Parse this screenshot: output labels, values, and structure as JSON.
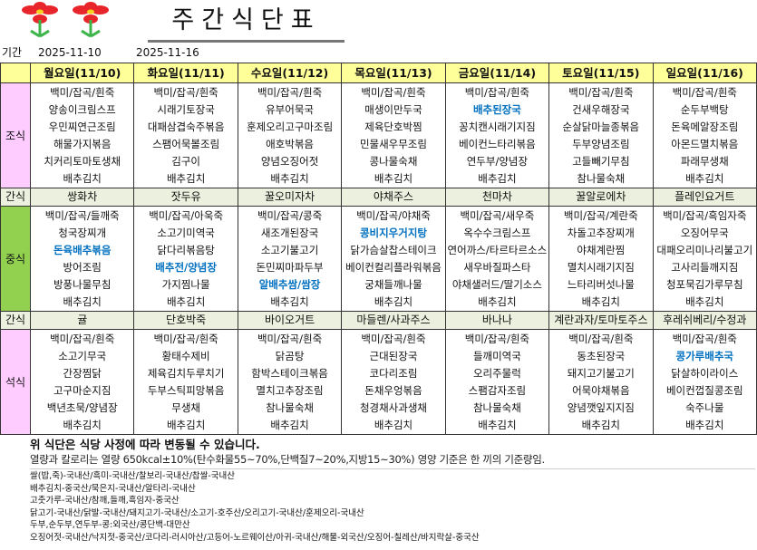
{
  "title": "주간식단표",
  "period": {
    "label": "기간",
    "start": "2025-11-10",
    "end": "2025-11-16"
  },
  "labels": {
    "breakfast": "조식",
    "snack": "간식",
    "lunch": "중식",
    "dinner": "석식"
  },
  "colors": {
    "header": "#FFFF99",
    "breakfast_label": "#FFCCFF",
    "lunch_label": "#92D050",
    "snack_row": "#EBF1DE",
    "highlight_text": "#0070C0"
  },
  "days": [
    {
      "name": "월요일(11/10)",
      "breakfast": [
        {
          "text": "백미/잡곡/흰죽"
        },
        {
          "text": "양송이크림스프"
        },
        {
          "text": "우민찌연근조림"
        },
        {
          "text": "해물가지볶음"
        },
        {
          "text": "치커리토마토생채"
        },
        {
          "text": "배추김치"
        }
      ],
      "snack_am": "쌍화차",
      "lunch": [
        {
          "text": "백미/잡곡/들깨죽"
        },
        {
          "text": "청국장찌개"
        },
        {
          "text": "돈육배추볶음",
          "highlight": true
        },
        {
          "text": "방어조림"
        },
        {
          "text": "방풍나물무침"
        },
        {
          "text": "배추김치"
        }
      ],
      "snack_pm": "귤",
      "dinner": [
        {
          "text": "백미/잡곡/흰죽"
        },
        {
          "text": "소고기무국"
        },
        {
          "text": "간장찜닭"
        },
        {
          "text": "고구마순지짐"
        },
        {
          "text": "백년초묵/양념장"
        },
        {
          "text": "배추김치"
        }
      ]
    },
    {
      "name": "화요일(11/11)",
      "breakfast": [
        {
          "text": "백미/잡곡/흰죽"
        },
        {
          "text": "시래기토장국"
        },
        {
          "text": "대패삼겹숙주볶음"
        },
        {
          "text": "스팸어묵볼조림"
        },
        {
          "text": "김구이"
        },
        {
          "text": "배추김치"
        }
      ],
      "snack_am": "잣두유",
      "lunch": [
        {
          "text": "백미/잡곡/아욱죽"
        },
        {
          "text": "소고기미역국"
        },
        {
          "text": "닭다리볶음탕"
        },
        {
          "text": "배추전/양념장",
          "highlight": true
        },
        {
          "text": "가지찜나물"
        },
        {
          "text": "배추김치"
        }
      ],
      "snack_pm": "단호박죽",
      "dinner": [
        {
          "text": "백미/잡곡/흰죽"
        },
        {
          "text": "황태수제비"
        },
        {
          "text": "제육김치두루치기"
        },
        {
          "text": "두부스틱피망볶음"
        },
        {
          "text": "무생채"
        },
        {
          "text": "배추김치"
        }
      ]
    },
    {
      "name": "수요일(11/12)",
      "breakfast": [
        {
          "text": "백미/잡곡/흰죽"
        },
        {
          "text": "유부어묵국"
        },
        {
          "text": "훈제오리고구마조림"
        },
        {
          "text": "애호박볶음"
        },
        {
          "text": "양념오징어젓"
        },
        {
          "text": "배추김치"
        }
      ],
      "snack_am": "꿀오미자차",
      "lunch": [
        {
          "text": "백미/잡곡/콩죽"
        },
        {
          "text": "새조개된장국"
        },
        {
          "text": "소고기불고기"
        },
        {
          "text": "돈민찌마파두부"
        },
        {
          "text": "알배추쌈/쌈장",
          "highlight": true
        },
        {
          "text": "배추김치"
        }
      ],
      "snack_pm": "바이오거트",
      "dinner": [
        {
          "text": "백미/잡곡/흰죽"
        },
        {
          "text": "닭곰탕"
        },
        {
          "text": "함박스테이크볶음"
        },
        {
          "text": "멸치고추장조림"
        },
        {
          "text": "참나물숙채"
        },
        {
          "text": "배추김치"
        }
      ]
    },
    {
      "name": "목요일(11/13)",
      "breakfast": [
        {
          "text": "백미/잡곡/흰죽"
        },
        {
          "text": "매생이만두국"
        },
        {
          "text": "제육단호박찜"
        },
        {
          "text": "민물새우무조림"
        },
        {
          "text": "콩나물숙채"
        },
        {
          "text": "배추김치"
        }
      ],
      "snack_am": "야채주스",
      "lunch": [
        {
          "text": "백미/잡곡/야채죽"
        },
        {
          "text": "콩비지우거지탕",
          "highlight": true
        },
        {
          "text": "닭가슴살찹스테이크"
        },
        {
          "text": "베이컨컬리플라워볶음"
        },
        {
          "text": "궁채들깨나물"
        },
        {
          "text": "배추김치"
        }
      ],
      "snack_pm": "마들렌/사과주스",
      "dinner": [
        {
          "text": "백미/잡곡/흰죽"
        },
        {
          "text": "근대된장국"
        },
        {
          "text": "코다리조림"
        },
        {
          "text": "돈채우엉볶음"
        },
        {
          "text": "청경채사과생채"
        },
        {
          "text": "배추김치"
        }
      ]
    },
    {
      "name": "금요일(11/14)",
      "breakfast": [
        {
          "text": "백미/잡곡/흰죽"
        },
        {
          "text": "배추된장국",
          "highlight": true
        },
        {
          "text": "꽁치캔시래기지짐"
        },
        {
          "text": "베이컨느타리볶음"
        },
        {
          "text": "연두부/양념장"
        },
        {
          "text": "배추김치"
        }
      ],
      "snack_am": "천마차",
      "lunch": [
        {
          "text": "백미/잡곡/새우죽"
        },
        {
          "text": "옥수수크림스프"
        },
        {
          "text": "연어까스/타르타르소스"
        },
        {
          "text": "새우바질파스타"
        },
        {
          "text": "야채샐러드/딸기소스"
        },
        {
          "text": "배추김치"
        }
      ],
      "snack_pm": "바나나",
      "dinner": [
        {
          "text": "백미/잡곡/흰죽"
        },
        {
          "text": "들깨미역국"
        },
        {
          "text": "오리주물럭"
        },
        {
          "text": "스팸감자조림"
        },
        {
          "text": "참나물숙채"
        },
        {
          "text": "배추김치"
        }
      ]
    },
    {
      "name": "토요일(11/15)",
      "breakfast": [
        {
          "text": "백미/잡곡/흰죽"
        },
        {
          "text": "건새우해장국"
        },
        {
          "text": "순살닭마늘종볶음"
        },
        {
          "text": "두부양념조림"
        },
        {
          "text": "고들빼기무침"
        },
        {
          "text": "참나물숙채"
        }
      ],
      "snack_am": "꿀알로에차",
      "lunch": [
        {
          "text": "백미/잡곡/계란죽"
        },
        {
          "text": "차돌고추장찌개"
        },
        {
          "text": "야채계란찜"
        },
        {
          "text": "멸치시래기지짐"
        },
        {
          "text": "느타리버섯나물"
        },
        {
          "text": "배추김치"
        }
      ],
      "snack_pm": "계란과자/토마토주스",
      "dinner": [
        {
          "text": "백미/잡곡/흰죽"
        },
        {
          "text": "동초된장국"
        },
        {
          "text": "돼지고기불고기"
        },
        {
          "text": "어묵야채볶음"
        },
        {
          "text": "양념깻잎지지짐"
        },
        {
          "text": "배추김치"
        }
      ]
    },
    {
      "name": "일요일(11/16)",
      "breakfast": [
        {
          "text": "백미/잡곡/흰죽"
        },
        {
          "text": "순두부백탕"
        },
        {
          "text": "돈육메알장조림"
        },
        {
          "text": "아몬드멸치볶음"
        },
        {
          "text": "파래무생채"
        },
        {
          "text": "배추김치"
        }
      ],
      "snack_am": "플레인요거트",
      "lunch": [
        {
          "text": "백미/잡곡/흑임자죽"
        },
        {
          "text": "오징어무국"
        },
        {
          "text": "대패오리미나리불고기"
        },
        {
          "text": "고사리들깨지짐"
        },
        {
          "text": "청포묵김가루무침"
        },
        {
          "text": "배추김치"
        }
      ],
      "snack_pm": "후레쉬베리/수정과",
      "dinner": [
        {
          "text": "백미/잡곡/흰죽"
        },
        {
          "text": "콩가루배추국",
          "highlight": true
        },
        {
          "text": "닭살하이라이스"
        },
        {
          "text": "베이컨껍질콩조림"
        },
        {
          "text": "숙주나물"
        },
        {
          "text": "배추김치"
        }
      ]
    }
  ],
  "footer": {
    "notice": "위 식단은 식당 사정에 따라 변동될 수 있습니다.",
    "nutrition": "열량과 칼로리는 열량 650kcal±10%(탄수화물55~70%,단백질7~20%,지방15~30%) 영양 기준은 한 끼의 기준량임.",
    "origins": [
      "쌀(밥,죽)-국내산/흑미-국내산/찰보리-국내산/찹쌀-국내산",
      "배추김치-중국산/묵은지-국내산/알타리-국내산",
      "고춧가루-국내산/참깨,들깨,흑임자-중국산",
      "닭고기-국내산/닭발-국내산/돼지고기-국내산/소고기-호주산/오리고기-국내산/훈제오리-국내산",
      "두부,순두부,연두부-콩:외국산/콩단백-대만산",
      "오징어젓-국내산/낙지젓-중국산/코다리-러시아산/고등어-노르웨이산/아귀-국내산/해물-외국산/오징어-칠레산/바지락살-중국산"
    ]
  }
}
